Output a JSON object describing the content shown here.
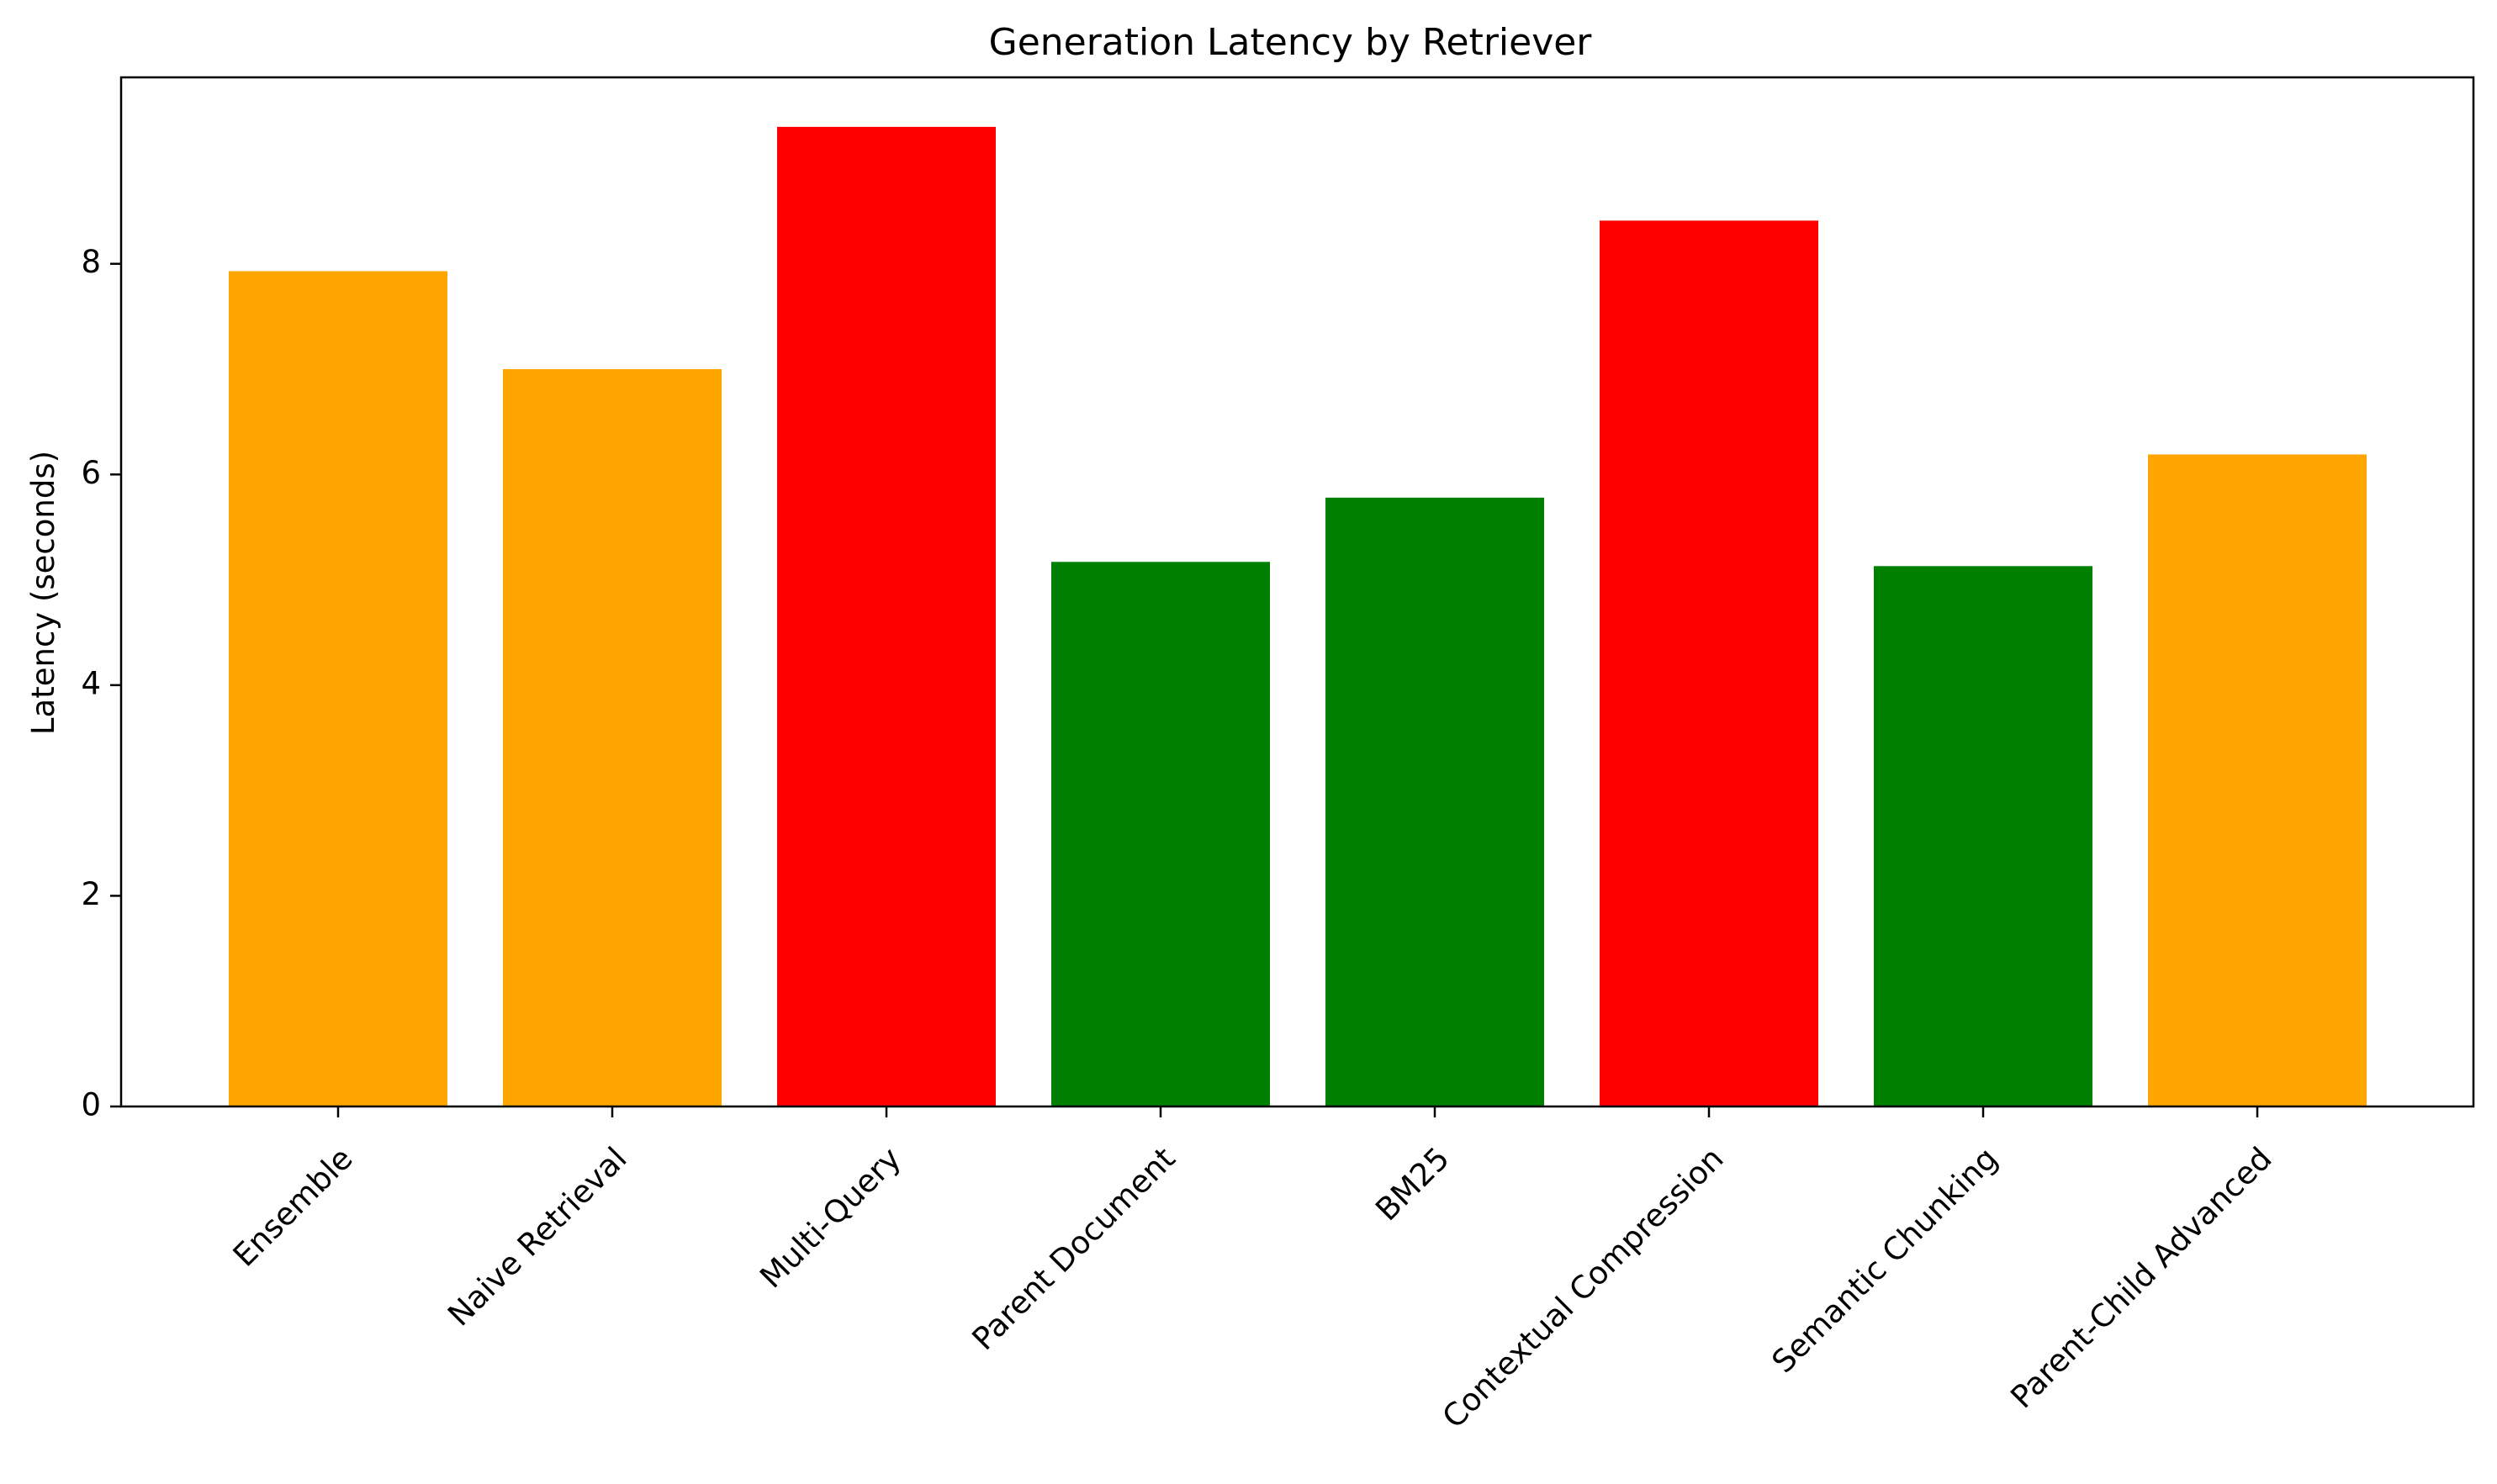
{
  "chart_data": {
    "type": "bar",
    "title": "Generation Latency by Retriever",
    "xlabel": "",
    "ylabel": "Latency (seconds)",
    "ylim": [
      0,
      9.77
    ],
    "yticks": [
      0,
      2,
      4,
      6,
      8
    ],
    "grid": false,
    "categories": [
      "Ensemble",
      "Naive Retrieval",
      "Multi-Query",
      "Parent Document",
      "BM25",
      "Contextual Compression",
      "Semantic Chunking",
      "Parent-Child Advanced"
    ],
    "values": [
      7.93,
      7.0,
      9.3,
      5.17,
      5.78,
      8.41,
      5.13,
      6.19
    ],
    "colors": [
      "#ffa500",
      "#ffa500",
      "#ff0000",
      "#008000",
      "#008000",
      "#ff0000",
      "#008000",
      "#ffa500"
    ]
  }
}
